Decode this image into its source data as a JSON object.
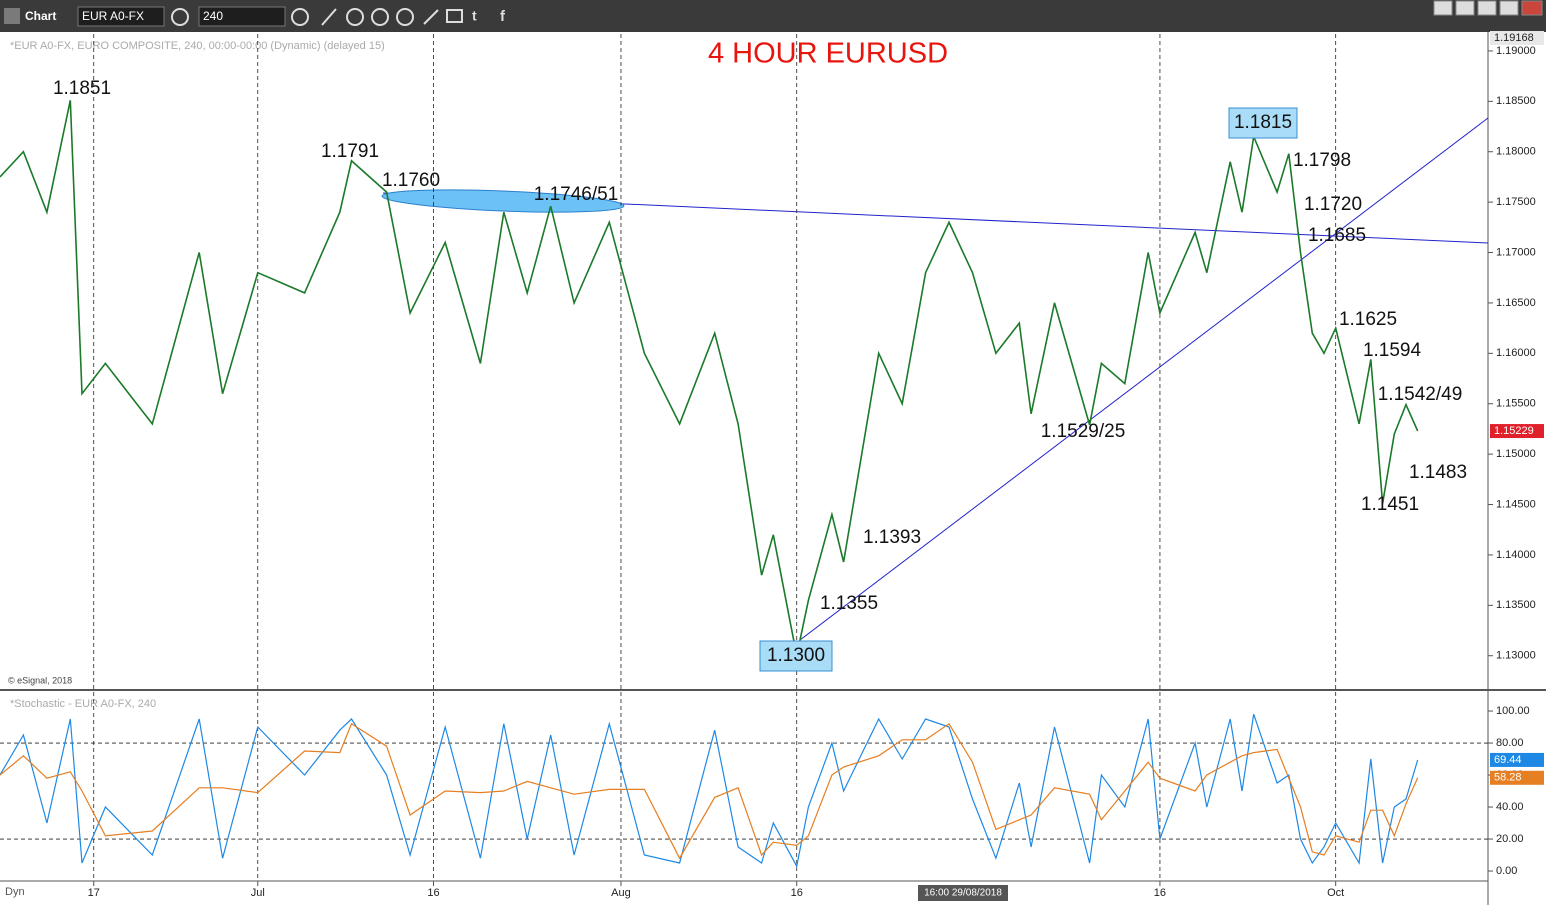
{
  "toolbar": {
    "title": "Chart",
    "symbol": "EUR A0-FX",
    "interval": "240"
  },
  "header": "*EUR A0-FX, EURO COMPOSITE, 240, 00:00-00:00 (Dynamic) (delayed 15)",
  "copyright": "© eSignal, 2018",
  "study_header": "*Stochastic - EUR A0-FX, 240",
  "crosshair_label": "16:00 29/08/2018",
  "mode_label": "Dyn",
  "chart_data": [
    {
      "type": "line",
      "title": "4 HOUR EURUSD",
      "color": "#1b7a2a",
      "xlim": [
        "2018-06-09",
        "2018-10-14"
      ],
      "ylim": [
        1.1266,
        1.19168
      ],
      "yticks": [
        {
          "value": 1.13,
          "label": "1.13000"
        },
        {
          "value": 1.135,
          "label": "1.13500"
        },
        {
          "value": 1.14,
          "label": "1.14000"
        },
        {
          "value": 1.145,
          "label": "1.14500"
        },
        {
          "value": 1.15,
          "label": "1.15000"
        },
        {
          "value": 1.155,
          "label": "1.15500"
        },
        {
          "value": 1.16,
          "label": "1.16000"
        },
        {
          "value": 1.165,
          "label": "1.16500"
        },
        {
          "value": 1.17,
          "label": "1.17000"
        },
        {
          "value": 1.175,
          "label": "1.17500"
        },
        {
          "value": 1.18,
          "label": "1.18000"
        },
        {
          "value": 1.185,
          "label": "1.18500"
        },
        {
          "value": 1.19,
          "label": "1.19000"
        }
      ],
      "x": [
        "2018-06-09",
        "2018-06-11",
        "2018-06-13",
        "2018-06-15",
        "2018-06-16",
        "2018-06-18",
        "2018-06-22",
        "2018-06-26",
        "2018-06-28",
        "2018-07-01",
        "2018-07-05",
        "2018-07-08",
        "2018-07-09",
        "2018-07-12",
        "2018-07-14",
        "2018-07-17",
        "2018-07-20",
        "2018-07-22",
        "2018-07-24",
        "2018-07-26",
        "2018-07-28",
        "2018-07-31",
        "2018-08-03",
        "2018-08-06",
        "2018-08-09",
        "2018-08-11",
        "2018-08-13",
        "2018-08-14",
        "2018-08-16",
        "2018-08-17",
        "2018-08-19",
        "2018-08-20",
        "2018-08-23",
        "2018-08-25",
        "2018-08-27",
        "2018-08-29",
        "2018-08-31",
        "2018-09-02",
        "2018-09-04",
        "2018-09-05",
        "2018-09-07",
        "2018-09-10",
        "2018-09-11",
        "2018-09-13",
        "2018-09-15",
        "2018-09-16",
        "2018-09-19",
        "2018-09-20",
        "2018-09-22",
        "2018-09-23",
        "2018-09-24",
        "2018-09-26",
        "2018-09-27",
        "2018-09-28",
        "2018-09-29",
        "2018-09-30",
        "2018-10-01",
        "2018-10-03",
        "2018-10-04",
        "2018-10-05",
        "2018-10-06",
        "2018-10-07",
        "2018-10-08"
      ],
      "values": [
        1.1775,
        1.18,
        1.174,
        1.1851,
        1.156,
        1.159,
        1.153,
        1.17,
        1.156,
        1.168,
        1.166,
        1.174,
        1.1791,
        1.176,
        1.164,
        1.171,
        1.159,
        1.174,
        1.166,
        1.1746,
        1.165,
        1.173,
        1.16,
        1.153,
        1.162,
        1.153,
        1.138,
        1.142,
        1.13,
        1.1355,
        1.144,
        1.1393,
        1.16,
        1.155,
        1.168,
        1.173,
        1.168,
        1.16,
        1.163,
        1.154,
        1.165,
        1.1529,
        1.159,
        1.157,
        1.17,
        1.164,
        1.172,
        1.168,
        1.179,
        1.174,
        1.1815,
        1.176,
        1.1798,
        1.17,
        1.162,
        1.16,
        1.1625,
        1.153,
        1.1594,
        1.1451,
        1.152,
        1.1549,
        1.15229
      ],
      "annotations": [
        "1.1851",
        "1.1791",
        "1.1760",
        "1.1746/51",
        "1.1815",
        "1.1798",
        "1.1720",
        "1.1685",
        "1.1625",
        "1.1594",
        "1.1542/49",
        "1.1483",
        "1.1451",
        "1.1529/25",
        "1.1393",
        "1.1355",
        "1.1300"
      ]
    },
    {
      "type": "line",
      "xlim": [
        "2018-06-09",
        "2018-10-14"
      ],
      "xticks": [
        {
          "value": "2018-06-17",
          "label": "17"
        },
        {
          "value": "2018-07-01",
          "label": "Jul"
        },
        {
          "value": "2018-07-16",
          "label": "16"
        },
        {
          "value": "2018-08-01",
          "label": "Aug"
        },
        {
          "value": "2018-08-16",
          "label": "16"
        },
        {
          "value": "2018-09-16",
          "label": "16"
        },
        {
          "value": "2018-10-01",
          "label": "Oct"
        }
      ],
      "ylim": [
        -5.6,
        111.9
      ],
      "yticks": [
        {
          "value": 0,
          "label": "0.00"
        },
        {
          "value": 20,
          "label": "20.00"
        },
        {
          "value": 40,
          "label": "40.00"
        },
        {
          "value": 60,
          "label": "60.00"
        },
        {
          "value": 80,
          "label": "80.00"
        },
        {
          "value": 100,
          "label": "100.00"
        }
      ],
      "levels": [
        20,
        80
      ],
      "x": [
        "2018-06-09",
        "2018-06-11",
        "2018-06-13",
        "2018-06-15",
        "2018-06-16",
        "2018-06-18",
        "2018-06-22",
        "2018-06-26",
        "2018-06-28",
        "2018-07-01",
        "2018-07-05",
        "2018-07-08",
        "2018-07-09",
        "2018-07-12",
        "2018-07-14",
        "2018-07-17",
        "2018-07-20",
        "2018-07-22",
        "2018-07-24",
        "2018-07-26",
        "2018-07-28",
        "2018-07-31",
        "2018-08-03",
        "2018-08-06",
        "2018-08-09",
        "2018-08-11",
        "2018-08-13",
        "2018-08-14",
        "2018-08-16",
        "2018-08-17",
        "2018-08-19",
        "2018-08-20",
        "2018-08-23",
        "2018-08-25",
        "2018-08-27",
        "2018-08-29",
        "2018-08-31",
        "2018-09-02",
        "2018-09-04",
        "2018-09-05",
        "2018-09-07",
        "2018-09-10",
        "2018-09-11",
        "2018-09-13",
        "2018-09-15",
        "2018-09-16",
        "2018-09-19",
        "2018-09-20",
        "2018-09-22",
        "2018-09-23",
        "2018-09-24",
        "2018-09-26",
        "2018-09-27",
        "2018-09-28",
        "2018-09-29",
        "2018-09-30",
        "2018-10-01",
        "2018-10-03",
        "2018-10-04",
        "2018-10-05",
        "2018-10-06",
        "2018-10-07",
        "2018-10-08"
      ],
      "series": [
        {
          "color": "#1e88e5",
          "values": [
            60,
            85,
            30,
            95,
            5,
            40,
            10,
            95,
            8,
            90,
            60,
            88,
            95,
            60,
            10,
            90,
            8,
            92,
            20,
            85,
            10,
            92,
            10,
            5,
            88,
            15,
            5,
            30,
            3,
            40,
            80,
            50,
            95,
            70,
            95,
            90,
            45,
            8,
            55,
            15,
            90,
            5,
            60,
            40,
            95,
            20,
            80,
            40,
            95,
            50,
            98,
            55,
            60,
            20,
            5,
            15,
            30,
            5,
            70,
            5,
            40,
            45,
            69.44
          ]
        },
        {
          "color": "#e67e22",
          "values": [
            60,
            72,
            58,
            62,
            50,
            22,
            25,
            52,
            52,
            49,
            75,
            74,
            92,
            78,
            35,
            50,
            49,
            50,
            56,
            52,
            48,
            51,
            51,
            8,
            46,
            52,
            10,
            18,
            16,
            22,
            60,
            65,
            72,
            82,
            82,
            92,
            68,
            26,
            32,
            35,
            52,
            48,
            32,
            50,
            68,
            58,
            50,
            60,
            68,
            72,
            74,
            76,
            58,
            40,
            12,
            10,
            22,
            18,
            38,
            38,
            22,
            42,
            58.28
          ]
        }
      ]
    }
  ]
}
